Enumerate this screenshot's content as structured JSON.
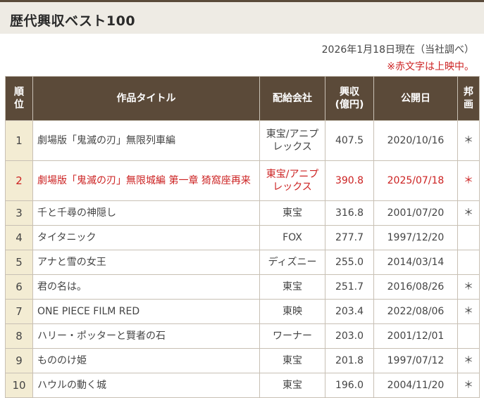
{
  "page": {
    "title": "歴代興収ベスト100",
    "as_of": "2026年1月18日現在（当社調べ）",
    "note": "※赤文字は上映中。"
  },
  "table": {
    "headers": {
      "rank": [
        "順",
        "位"
      ],
      "title": "作品タイトル",
      "distributor": "配給会社",
      "gross": [
        "興収",
        "(億円)"
      ],
      "release": "公開日",
      "domestic": [
        "邦",
        "画"
      ]
    },
    "rows": [
      {
        "rank": "1",
        "title": "劇場版「鬼滅の刃」無限列車編",
        "distributor": "東宝/アニプレックス",
        "gross": "407.5",
        "release": "2020/10/16",
        "domestic": "＊"
      },
      {
        "rank": "2",
        "title": "劇場版「鬼滅の刃」無限城編 第一章 猗窩座再来",
        "distributor": "東宝/アニプレックス",
        "gross": "390.8",
        "release": "2025/07/18",
        "domestic": "＊"
      },
      {
        "rank": "3",
        "title": "千と千尋の神隠し",
        "distributor": "東宝",
        "gross": "316.8",
        "release": "2001/07/20",
        "domestic": "＊"
      },
      {
        "rank": "4",
        "title": "タイタニック",
        "distributor": "FOX",
        "gross": "277.7",
        "release": "1997/12/20",
        "domestic": ""
      },
      {
        "rank": "5",
        "title": "アナと雪の女王",
        "distributor": "ディズニー",
        "gross": "255.0",
        "release": "2014/03/14",
        "domestic": ""
      },
      {
        "rank": "6",
        "title": "君の名は。",
        "distributor": "東宝",
        "gross": "251.7",
        "release": "2016/08/26",
        "domestic": "＊"
      },
      {
        "rank": "7",
        "title": "ONE PIECE FILM RED",
        "distributor": "東映",
        "gross": "203.4",
        "release": "2022/08/06",
        "domestic": "＊"
      },
      {
        "rank": "8",
        "title": "ハリー・ポッターと賢者の石",
        "distributor": "ワーナー",
        "gross": "203.0",
        "release": "2001/12/01",
        "domestic": ""
      },
      {
        "rank": "9",
        "title": "もののけ姫",
        "distributor": "東宝",
        "gross": "201.8",
        "release": "1997/07/12",
        "domestic": "＊"
      },
      {
        "rank": "10",
        "title": "ハウルの動く城",
        "distributor": "東宝",
        "gross": "196.0",
        "release": "2004/11/20",
        "domestic": "＊"
      }
    ]
  },
  "colors": {
    "header_bg": "#5b4a39",
    "rank_cell_bg": "#f3ecd3",
    "title_bar_bg": "#eeebe4",
    "now_showing_text": "#cc2222"
  }
}
